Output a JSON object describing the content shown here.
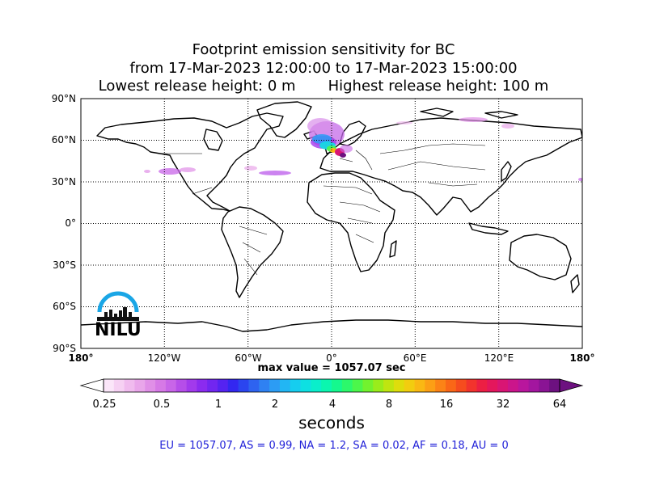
{
  "title": {
    "line1": "Footprint emission sensitivity for BC",
    "line2": "from 17-Mar-2023 12:00:00 to 17-Mar-2023 15:00:00",
    "line3": "Lowest release height: 0 m       Highest release height: 100 m"
  },
  "map": {
    "lat_ticks": [
      "90°N",
      "60°N",
      "30°N",
      "0°",
      "30°S",
      "60°S",
      "90°S"
    ],
    "lon_ticks": [
      "180°",
      "120°W",
      "60°W",
      "0°",
      "60°E",
      "120°E",
      "180°"
    ],
    "grid": true,
    "logo": {
      "name": "nilu-logo",
      "text": "NILU",
      "color": "#1aa6e6"
    }
  },
  "max_value_label": "max value = 1057.07 sec",
  "colorbar": {
    "ticks": [
      "0.25",
      "0.5",
      "1",
      "2",
      "4",
      "8",
      "16",
      "32",
      "64"
    ],
    "units": "seconds",
    "colors": [
      "#fbe6f9",
      "#f6d1f3",
      "#f0bbee",
      "#e9a6ea",
      "#e08fe7",
      "#d679e6",
      "#c865e8",
      "#b64ee9",
      "#a23aec",
      "#8b2bef",
      "#7126f0",
      "#5523f1",
      "#3327f0",
      "#2b45ef",
      "#2e63f0",
      "#2f81f2",
      "#2c9cf4",
      "#22b6f4",
      "#16cdef",
      "#0ee0e2",
      "#0aeecb",
      "#0bf6af",
      "#15f88e",
      "#2cf86b",
      "#4cf64b",
      "#72f22e",
      "#9aec1b",
      "#bfe510",
      "#dedd0c",
      "#f2cd0f",
      "#fab813",
      "#fc9f15",
      "#fc8316",
      "#fa6717",
      "#f64c1e",
      "#f2332d",
      "#ec1f43",
      "#e4175c",
      "#d91574",
      "#cb158b",
      "#b9169d",
      "#a3169f",
      "#8a1494",
      "#6d1180"
    ]
  },
  "stats": "EU = 1057.07,  AS = 0.99,  NA = 1.2,  SA = 0.02,  AF = 0.18,  AU = 0"
}
